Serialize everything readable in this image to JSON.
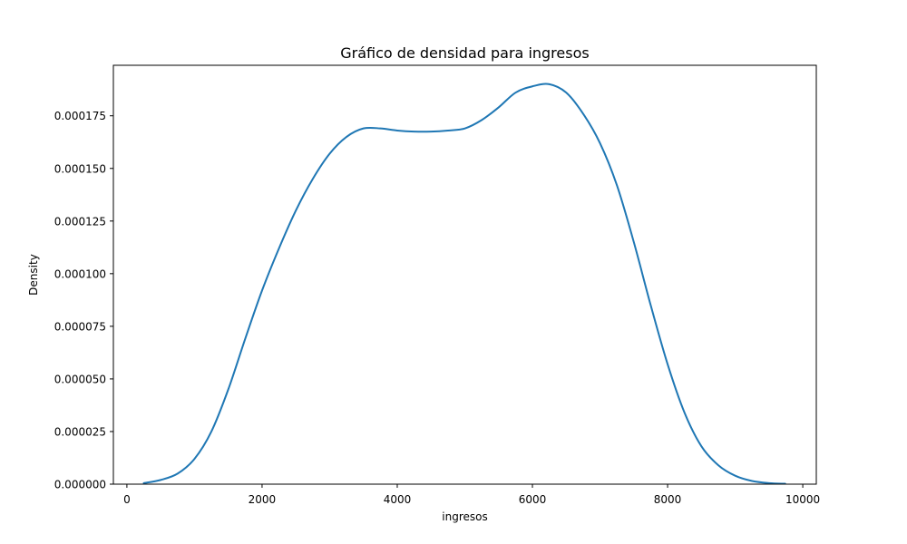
{
  "chart_data": {
    "type": "line",
    "title": "Gráfico de densidad para ingresos",
    "xlabel": "ingresos",
    "ylabel": "Density",
    "xlim": [
      -200,
      10200
    ],
    "ylim": [
      0,
      0.000199
    ],
    "grid": false,
    "x_ticks": [
      {
        "value": 0,
        "label": "0"
      },
      {
        "value": 2000,
        "label": "2000"
      },
      {
        "value": 4000,
        "label": "4000"
      },
      {
        "value": 6000,
        "label": "6000"
      },
      {
        "value": 8000,
        "label": "8000"
      },
      {
        "value": 10000,
        "label": "10000"
      }
    ],
    "y_ticks": [
      {
        "value": 0,
        "label": "0.000000"
      },
      {
        "value": 2.5e-05,
        "label": "0.000025"
      },
      {
        "value": 5e-05,
        "label": "0.000050"
      },
      {
        "value": 7.5e-05,
        "label": "0.000075"
      },
      {
        "value": 0.0001,
        "label": "0.000100"
      },
      {
        "value": 0.000125,
        "label": "0.000125"
      },
      {
        "value": 0.00015,
        "label": "0.000150"
      },
      {
        "value": 0.000175,
        "label": "0.000175"
      }
    ],
    "series": [
      {
        "color": "#1f77b4",
        "x": [
          250,
          500,
          750,
          1000,
          1250,
          1500,
          1750,
          2000,
          2250,
          2500,
          2750,
          3000,
          3250,
          3500,
          3750,
          4000,
          4250,
          4500,
          4750,
          5000,
          5250,
          5500,
          5750,
          6000,
          6250,
          6500,
          6750,
          7000,
          7250,
          7500,
          7750,
          8000,
          8250,
          8500,
          8750,
          9000,
          9250,
          9500,
          9740
        ],
        "y": [
          5e-07,
          2e-06,
          5e-06,
          1.2e-05,
          2.5e-05,
          4.5e-05,
          6.9e-05,
          9.2e-05,
          0.000112,
          0.00013,
          0.000145,
          0.000157,
          0.000165,
          0.000169,
          0.000169,
          0.000168,
          0.0001675,
          0.0001675,
          0.000168,
          0.000169,
          0.000173,
          0.000179,
          0.000186,
          0.000189,
          0.00019,
          0.000186,
          0.000176,
          0.000162,
          0.000142,
          0.000115,
          8.5e-05,
          5.7e-05,
          3.4e-05,
          1.8e-05,
          9e-06,
          4e-06,
          1.5e-06,
          5e-07,
          2e-07
        ]
      }
    ]
  }
}
